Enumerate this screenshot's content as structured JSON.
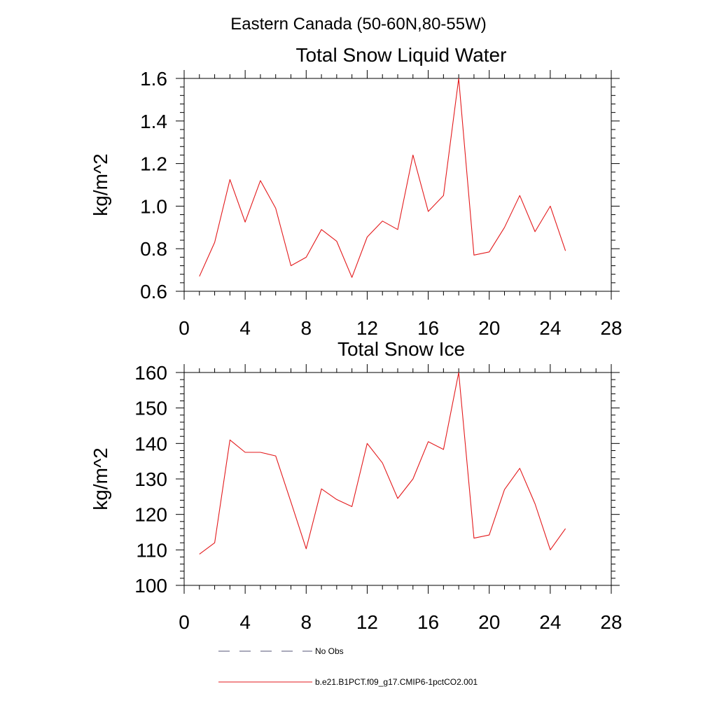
{
  "figure_title": "Eastern Canada (50-60N,80-55W)",
  "legend": {
    "entries": [
      {
        "label": "No Obs",
        "color": "#555577",
        "style": "dashed"
      },
      {
        "label": "b.e21.B1PCT.f09_g17.CMIP6-1pctCO2.001",
        "color": "#e31a1c",
        "style": "solid"
      }
    ]
  },
  "chart_data": [
    {
      "type": "line",
      "title": "Total Snow Liquid Water",
      "xlabel": "",
      "ylabel": "kg/m^2",
      "xlim": [
        0,
        28
      ],
      "ylim": [
        0.6,
        1.6
      ],
      "xticks": [
        0,
        4,
        8,
        12,
        16,
        20,
        24,
        28
      ],
      "yticks": [
        0.6,
        0.8,
        1.0,
        1.2,
        1.4,
        1.6
      ],
      "ytick_labels": [
        "0.6",
        "0.8",
        "1.0",
        "1.2",
        "1.4",
        "1.6"
      ],
      "grid": false,
      "series": [
        {
          "name": "b.e21.B1PCT.f09_g17.CMIP6-1pctCO2.001",
          "color": "#e31a1c",
          "x": [
            1,
            2,
            3,
            4,
            5,
            6,
            7,
            8,
            9,
            10,
            11,
            12,
            13,
            14,
            15,
            16,
            17,
            18,
            19,
            20,
            21,
            22,
            23,
            24,
            25
          ],
          "y": [
            0.67,
            0.83,
            1.125,
            0.925,
            1.12,
            0.99,
            0.72,
            0.76,
            0.89,
            0.835,
            0.665,
            0.855,
            0.93,
            0.89,
            1.24,
            0.975,
            1.05,
            1.6,
            0.77,
            0.785,
            0.9,
            1.05,
            0.88,
            1.0,
            0.79
          ]
        }
      ]
    },
    {
      "type": "line",
      "title": "Total Snow Ice",
      "xlabel": "",
      "ylabel": "kg/m^2",
      "xlim": [
        0,
        28
      ],
      "ylim": [
        100,
        160
      ],
      "xticks": [
        0,
        4,
        8,
        12,
        16,
        20,
        24,
        28
      ],
      "yticks": [
        100,
        110,
        120,
        130,
        140,
        150,
        160
      ],
      "ytick_labels": [
        "100",
        "110",
        "120",
        "130",
        "140",
        "150",
        "160"
      ],
      "grid": false,
      "series": [
        {
          "name": "b.e21.B1PCT.f09_g17.CMIP6-1pctCO2.001",
          "color": "#e31a1c",
          "x": [
            1,
            2,
            3,
            4,
            5,
            6,
            7,
            8,
            9,
            10,
            11,
            12,
            13,
            14,
            15,
            16,
            17,
            18,
            19,
            20,
            21,
            22,
            23,
            24,
            25
          ],
          "y": [
            108.8,
            112,
            141,
            137.5,
            137.5,
            136.5,
            123.5,
            110.3,
            127.2,
            124.2,
            122.2,
            140,
            134.5,
            124.5,
            130,
            140.5,
            138.3,
            160,
            113.3,
            114.2,
            127,
            133,
            123,
            110,
            116
          ]
        }
      ]
    }
  ]
}
